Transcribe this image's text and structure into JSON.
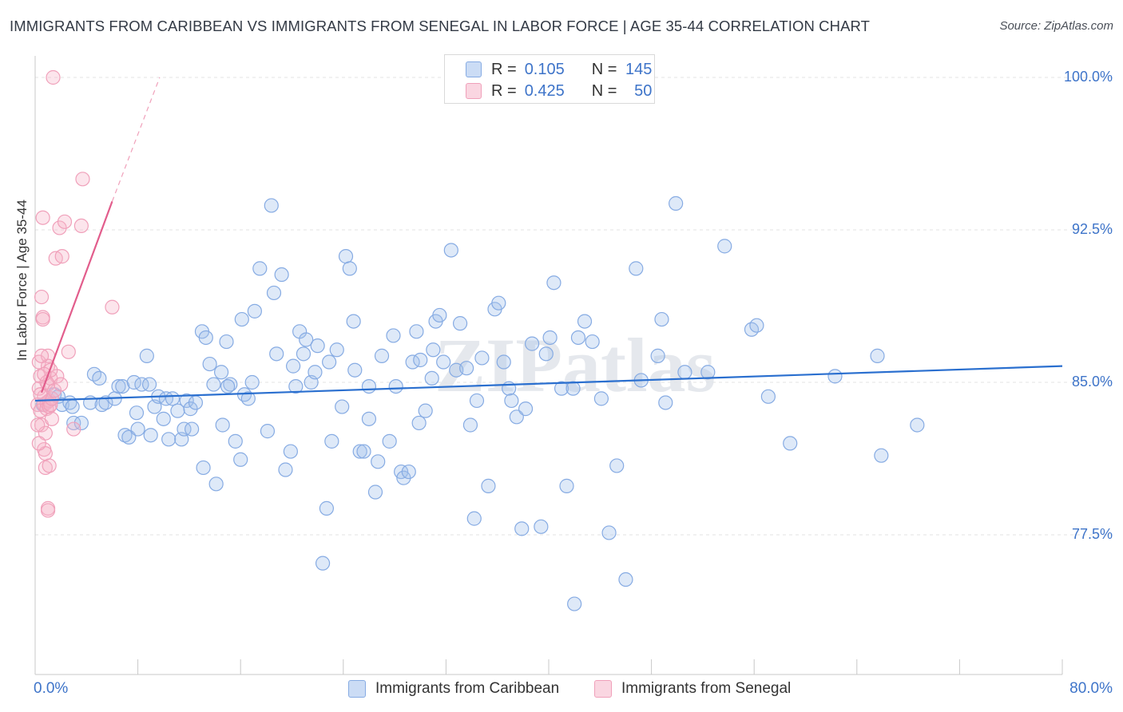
{
  "title": "IMMIGRANTS FROM CARIBBEAN VS IMMIGRANTS FROM SENEGAL IN LABOR FORCE | AGE 35-44 CORRELATION CHART",
  "source": "Source: ZipAtlas.com",
  "watermark": "ZIPatlas",
  "legend_top": {
    "rows": [
      {
        "r_label": "R =",
        "r_value": "0.105",
        "n_label": "N =",
        "n_value": "145",
        "color": "#a9c6ee"
      },
      {
        "r_label": "R =",
        "r_value": "0.425",
        "n_label": "N =",
        "n_value": "50",
        "color": "#f5b6c9"
      }
    ]
  },
  "legend_bottom": {
    "items": [
      {
        "label": "Immigrants from Caribbean",
        "color": "#a9c6ee"
      },
      {
        "label": "Immigrants from Senegal",
        "color": "#f5b6c9"
      }
    ]
  },
  "axes": {
    "x_min_label": "0.0%",
    "x_max_label": "80.0%",
    "y_title": "In Labor Force | Age 35-44",
    "y_ticks": [
      "100.0%",
      "92.5%",
      "85.0%",
      "77.5%"
    ]
  },
  "colors": {
    "blue_fill": "rgba(160,192,236,0.35)",
    "blue_stroke": "#86abe3",
    "blue_line": "#2a6fcf",
    "pink_fill": "rgba(245,180,200,0.35)",
    "pink_stroke": "#f0a0ba",
    "pink_line": "#e25d8c",
    "grid": "#e3e3e3",
    "tick_label": "#3e74c9"
  },
  "chart_data": {
    "type": "scatter",
    "title": "IMMIGRANTS FROM CARIBBEAN VS IMMIGRANTS FROM SENEGAL IN LABOR FORCE | AGE 35-44 CORRELATION CHART",
    "xlabel": "",
    "ylabel": "In Labor Force | Age 35-44",
    "xlim": [
      0,
      80
    ],
    "ylim": [
      71.5,
      101.5
    ],
    "y_ticks": [
      77.5,
      85.0,
      92.5,
      100.0
    ],
    "grid": true,
    "legend_position": "top-center",
    "series": [
      {
        "name": "Immigrants from Caribbean",
        "R": 0.105,
        "N": 145,
        "trend": {
          "x0": 0.0,
          "y0": 84.1,
          "x1": 80.0,
          "y1": 85.8
        },
        "points": [
          [
            0.6,
            83.9
          ],
          [
            1.5,
            84.4
          ],
          [
            1.8,
            84.3
          ],
          [
            2.1,
            83.9
          ],
          [
            2.7,
            84.0
          ],
          [
            2.9,
            83.8
          ],
          [
            3.0,
            83.0
          ],
          [
            3.6,
            83.0
          ],
          [
            4.3,
            84.0
          ],
          [
            4.6,
            85.4
          ],
          [
            5.0,
            85.2
          ],
          [
            5.2,
            83.9
          ],
          [
            5.5,
            84.0
          ],
          [
            6.2,
            84.2
          ],
          [
            6.5,
            84.8
          ],
          [
            6.8,
            84.8
          ],
          [
            7.0,
            82.4
          ],
          [
            7.3,
            82.3
          ],
          [
            7.7,
            85.0
          ],
          [
            8.0,
            82.7
          ],
          [
            8.3,
            84.9
          ],
          [
            8.7,
            86.3
          ],
          [
            8.9,
            84.9
          ],
          [
            9.3,
            83.8
          ],
          [
            9.6,
            84.3
          ],
          [
            10.0,
            83.2
          ],
          [
            10.2,
            84.2
          ],
          [
            10.4,
            82.2
          ],
          [
            10.7,
            84.2
          ],
          [
            11.1,
            83.6
          ],
          [
            11.4,
            82.2
          ],
          [
            11.6,
            82.7
          ],
          [
            11.8,
            84.1
          ],
          [
            12.1,
            83.7
          ],
          [
            12.5,
            84.0
          ],
          [
            13.0,
            87.5
          ],
          [
            13.1,
            80.8
          ],
          [
            13.3,
            87.2
          ],
          [
            13.6,
            85.9
          ],
          [
            13.9,
            84.9
          ],
          [
            14.1,
            80.0
          ],
          [
            14.5,
            85.5
          ],
          [
            14.9,
            87.0
          ],
          [
            15.2,
            84.9
          ],
          [
            15.6,
            82.1
          ],
          [
            16.0,
            81.2
          ],
          [
            16.3,
            84.4
          ],
          [
            16.6,
            84.2
          ],
          [
            16.9,
            85.0
          ],
          [
            17.1,
            88.5
          ],
          [
            17.5,
            90.6
          ],
          [
            18.1,
            82.6
          ],
          [
            18.4,
            93.7
          ],
          [
            18.8,
            86.4
          ],
          [
            19.2,
            90.3
          ],
          [
            19.5,
            80.7
          ],
          [
            19.9,
            81.6
          ],
          [
            20.3,
            84.8
          ],
          [
            20.6,
            87.5
          ],
          [
            20.9,
            86.4
          ],
          [
            21.1,
            87.1
          ],
          [
            21.5,
            85.0
          ],
          [
            21.8,
            85.5
          ],
          [
            22.4,
            76.1
          ],
          [
            22.7,
            78.8
          ],
          [
            22.9,
            86.0
          ],
          [
            23.1,
            82.1
          ],
          [
            23.5,
            86.6
          ],
          [
            23.9,
            83.8
          ],
          [
            24.2,
            91.2
          ],
          [
            24.5,
            90.6
          ],
          [
            24.9,
            85.6
          ],
          [
            25.3,
            81.6
          ],
          [
            25.6,
            81.6
          ],
          [
            26.0,
            84.8
          ],
          [
            26.5,
            79.6
          ],
          [
            26.7,
            81.1
          ],
          [
            27.0,
            86.3
          ],
          [
            27.6,
            82.1
          ],
          [
            27.9,
            87.3
          ],
          [
            28.1,
            84.8
          ],
          [
            28.5,
            80.6
          ],
          [
            28.7,
            80.3
          ],
          [
            29.1,
            80.6
          ],
          [
            29.4,
            86.0
          ],
          [
            29.7,
            87.5
          ],
          [
            30.0,
            86.1
          ],
          [
            30.4,
            83.6
          ],
          [
            30.9,
            85.2
          ],
          [
            31.2,
            88.0
          ],
          [
            31.5,
            88.3
          ],
          [
            31.8,
            86.0
          ],
          [
            32.4,
            91.5
          ],
          [
            32.8,
            85.6
          ],
          [
            33.1,
            87.9
          ],
          [
            33.6,
            85.7
          ],
          [
            34.2,
            78.3
          ],
          [
            34.4,
            84.1
          ],
          [
            34.8,
            86.2
          ],
          [
            35.3,
            79.9
          ],
          [
            35.8,
            88.6
          ],
          [
            36.1,
            88.9
          ],
          [
            36.9,
            84.7
          ],
          [
            37.1,
            84.1
          ],
          [
            37.5,
            83.3
          ],
          [
            37.9,
            77.8
          ],
          [
            38.2,
            83.7
          ],
          [
            39.4,
            77.9
          ],
          [
            39.8,
            86.4
          ],
          [
            40.1,
            87.2
          ],
          [
            40.4,
            89.9
          ],
          [
            41.0,
            84.7
          ],
          [
            41.4,
            79.9
          ],
          [
            41.9,
            84.7
          ],
          [
            42.3,
            87.2
          ],
          [
            42.8,
            88.0
          ],
          [
            43.4,
            87.0
          ],
          [
            44.7,
            77.6
          ],
          [
            46.0,
            75.3
          ],
          [
            46.8,
            90.6
          ],
          [
            47.2,
            85.1
          ],
          [
            48.5,
            86.3
          ],
          [
            48.8,
            88.1
          ],
          [
            49.1,
            84.0
          ],
          [
            49.9,
            93.8
          ],
          [
            50.6,
            85.5
          ],
          [
            52.4,
            85.5
          ],
          [
            53.7,
            91.7
          ],
          [
            55.8,
            87.6
          ],
          [
            56.2,
            87.8
          ],
          [
            57.1,
            84.3
          ],
          [
            58.8,
            82.0
          ],
          [
            62.3,
            85.3
          ],
          [
            65.6,
            86.3
          ],
          [
            65.9,
            81.4
          ],
          [
            68.7,
            82.9
          ],
          [
            42.0,
            74.1
          ],
          [
            9.0,
            82.4
          ],
          [
            15.0,
            84.8
          ],
          [
            26.0,
            83.2
          ],
          [
            18.6,
            89.4
          ],
          [
            31.0,
            86.6
          ],
          [
            45.3,
            80.9
          ],
          [
            7.9,
            83.5
          ],
          [
            12.2,
            82.7
          ],
          [
            20.1,
            85.8
          ],
          [
            33.9,
            82.9
          ],
          [
            38.7,
            86.9
          ],
          [
            29.9,
            83.0
          ],
          [
            44.1,
            84.2
          ],
          [
            22.0,
            86.8
          ],
          [
            16.1,
            88.1
          ],
          [
            36.5,
            86.0
          ],
          [
            24.8,
            88.0
          ],
          [
            14.6,
            82.9
          ]
        ]
      },
      {
        "name": "Immigrants from Senegal",
        "R": 0.425,
        "N": 50,
        "trend": {
          "x0": 0.5,
          "y0": 84.5,
          "x1": 6.0,
          "y1": 93.9,
          "dashed_to": {
            "x": 9.7,
            "y": 100.0
          }
        },
        "points": [
          [
            0.2,
            83.9
          ],
          [
            0.3,
            86.0
          ],
          [
            0.3,
            84.7
          ],
          [
            0.4,
            85.3
          ],
          [
            0.4,
            83.6
          ],
          [
            0.5,
            82.9
          ],
          [
            0.5,
            89.2
          ],
          [
            0.6,
            88.2
          ],
          [
            0.6,
            88.1
          ],
          [
            0.7,
            84.3
          ],
          [
            0.7,
            83.9
          ],
          [
            0.7,
            81.7
          ],
          [
            0.8,
            82.5
          ],
          [
            0.8,
            81.5
          ],
          [
            0.8,
            80.8
          ],
          [
            0.9,
            84.0
          ],
          [
            0.9,
            83.7
          ],
          [
            1.0,
            86.3
          ],
          [
            1.0,
            85.8
          ],
          [
            1.0,
            84.9
          ],
          [
            1.0,
            78.8
          ],
          [
            1.0,
            78.7
          ],
          [
            1.1,
            84.1
          ],
          [
            1.1,
            83.8
          ],
          [
            1.1,
            80.9
          ],
          [
            1.2,
            85.2
          ],
          [
            1.2,
            83.9
          ],
          [
            1.3,
            84.2
          ],
          [
            1.3,
            83.2
          ],
          [
            1.4,
            100.0
          ],
          [
            1.6,
            91.1
          ],
          [
            1.7,
            85.3
          ],
          [
            1.9,
            92.6
          ],
          [
            2.1,
            91.2
          ],
          [
            2.3,
            92.9
          ],
          [
            2.6,
            86.5
          ],
          [
            3.0,
            82.7
          ],
          [
            3.6,
            92.7
          ],
          [
            3.7,
            95.0
          ],
          [
            6.0,
            88.7
          ],
          [
            0.6,
            93.1
          ],
          [
            0.4,
            84.4
          ],
          [
            0.9,
            85.0
          ],
          [
            0.2,
            82.9
          ],
          [
            1.5,
            84.6
          ],
          [
            0.5,
            86.3
          ],
          [
            0.3,
            82.0
          ],
          [
            1.2,
            85.6
          ],
          [
            2.0,
            84.9
          ],
          [
            0.7,
            85.4
          ]
        ]
      }
    ]
  }
}
